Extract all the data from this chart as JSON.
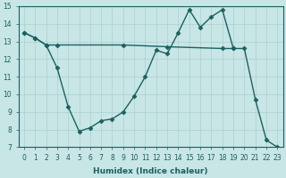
{
  "line1_x": [
    0,
    1,
    2,
    3,
    9,
    13,
    18,
    19
  ],
  "line1_y": [
    13.5,
    13.2,
    12.8,
    12.8,
    12.8,
    12.7,
    12.6,
    12.6
  ],
  "line2_x": [
    0,
    1,
    2,
    3,
    4,
    5,
    6,
    7,
    8,
    9,
    10,
    11,
    12,
    13,
    14,
    15,
    16,
    17,
    18,
    19,
    20,
    21,
    22,
    23
  ],
  "line2_y": [
    13.5,
    13.2,
    12.8,
    11.5,
    9.3,
    7.9,
    8.1,
    8.5,
    8.6,
    9.0,
    9.9,
    11.0,
    12.5,
    12.3,
    13.5,
    14.8,
    13.8,
    14.4,
    14.8,
    12.6,
    12.6,
    9.7,
    7.4,
    7.0
  ],
  "background_color": "#c8e6e6",
  "grid_color": "#aad0d0",
  "line_color": "#1a6060",
  "xlabel": "Humidex (Indice chaleur)",
  "ylim": [
    7,
    15
  ],
  "xlim": [
    -0.5,
    23.5
  ],
  "yticks": [
    7,
    8,
    9,
    10,
    11,
    12,
    13,
    14,
    15
  ],
  "xticks": [
    0,
    1,
    2,
    3,
    4,
    5,
    6,
    7,
    8,
    9,
    10,
    11,
    12,
    13,
    14,
    15,
    16,
    17,
    18,
    19,
    20,
    21,
    22,
    23
  ],
  "tick_fontsize": 5.5,
  "xlabel_fontsize": 6.5,
  "marker": "D",
  "markersize": 2.5,
  "linewidth": 1.0
}
